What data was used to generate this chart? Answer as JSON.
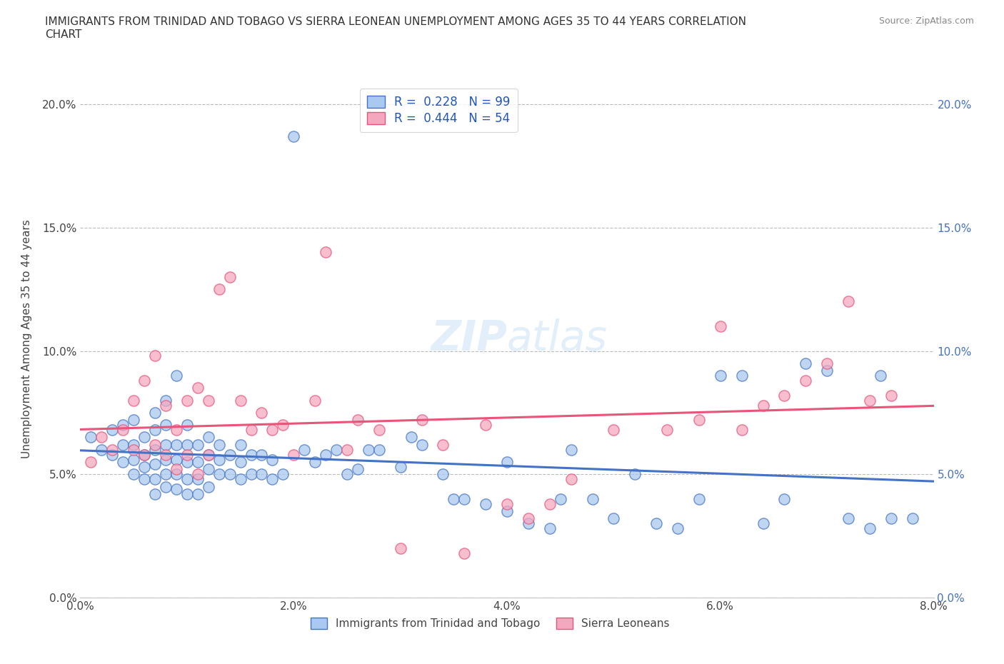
{
  "title": "IMMIGRANTS FROM TRINIDAD AND TOBAGO VS SIERRA LEONEAN UNEMPLOYMENT AMONG AGES 35 TO 44 YEARS CORRELATION\nCHART",
  "source_text": "Source: ZipAtlas.com",
  "ylabel": "Unemployment Among Ages 35 to 44 years",
  "xlim": [
    0.0,
    0.08
  ],
  "ylim": [
    0.0,
    0.21
  ],
  "legend_series": [
    {
      "label": "Immigrants from Trinidad and Tobago",
      "color": "#aac9f0",
      "R": 0.228,
      "N": 99
    },
    {
      "label": "Sierra Leoneans",
      "color": "#f4a8c0",
      "R": 0.444,
      "N": 54
    }
  ],
  "watermark": "ZIPatlas",
  "blue_scatter_x": [
    0.001,
    0.002,
    0.003,
    0.003,
    0.004,
    0.004,
    0.004,
    0.005,
    0.005,
    0.005,
    0.005,
    0.006,
    0.006,
    0.006,
    0.006,
    0.007,
    0.007,
    0.007,
    0.007,
    0.007,
    0.007,
    0.008,
    0.008,
    0.008,
    0.008,
    0.008,
    0.008,
    0.009,
    0.009,
    0.009,
    0.009,
    0.009,
    0.01,
    0.01,
    0.01,
    0.01,
    0.01,
    0.011,
    0.011,
    0.011,
    0.011,
    0.012,
    0.012,
    0.012,
    0.012,
    0.013,
    0.013,
    0.013,
    0.014,
    0.014,
    0.015,
    0.015,
    0.015,
    0.016,
    0.016,
    0.017,
    0.017,
    0.018,
    0.018,
    0.019,
    0.02,
    0.021,
    0.022,
    0.023,
    0.024,
    0.025,
    0.026,
    0.027,
    0.028,
    0.03,
    0.031,
    0.032,
    0.034,
    0.035,
    0.036,
    0.038,
    0.04,
    0.04,
    0.042,
    0.044,
    0.045,
    0.046,
    0.048,
    0.05,
    0.052,
    0.054,
    0.056,
    0.058,
    0.06,
    0.062,
    0.064,
    0.066,
    0.068,
    0.07,
    0.072,
    0.074,
    0.075,
    0.076,
    0.078
  ],
  "blue_scatter_y": [
    0.065,
    0.06,
    0.068,
    0.058,
    0.055,
    0.062,
    0.07,
    0.05,
    0.056,
    0.062,
    0.072,
    0.048,
    0.053,
    0.058,
    0.065,
    0.042,
    0.048,
    0.054,
    0.06,
    0.068,
    0.075,
    0.045,
    0.05,
    0.056,
    0.062,
    0.07,
    0.08,
    0.044,
    0.05,
    0.056,
    0.062,
    0.09,
    0.042,
    0.048,
    0.055,
    0.062,
    0.07,
    0.042,
    0.048,
    0.055,
    0.062,
    0.045,
    0.052,
    0.058,
    0.065,
    0.05,
    0.056,
    0.062,
    0.05,
    0.058,
    0.048,
    0.055,
    0.062,
    0.05,
    0.058,
    0.05,
    0.058,
    0.048,
    0.056,
    0.05,
    0.187,
    0.06,
    0.055,
    0.058,
    0.06,
    0.05,
    0.052,
    0.06,
    0.06,
    0.053,
    0.065,
    0.062,
    0.05,
    0.04,
    0.04,
    0.038,
    0.035,
    0.055,
    0.03,
    0.028,
    0.04,
    0.06,
    0.04,
    0.032,
    0.05,
    0.03,
    0.028,
    0.04,
    0.09,
    0.09,
    0.03,
    0.04,
    0.095,
    0.092,
    0.032,
    0.028,
    0.09,
    0.032,
    0.032
  ],
  "pink_scatter_x": [
    0.001,
    0.002,
    0.003,
    0.004,
    0.005,
    0.005,
    0.006,
    0.006,
    0.007,
    0.007,
    0.008,
    0.008,
    0.009,
    0.009,
    0.01,
    0.01,
    0.011,
    0.011,
    0.012,
    0.012,
    0.013,
    0.014,
    0.015,
    0.016,
    0.017,
    0.018,
    0.019,
    0.02,
    0.022,
    0.023,
    0.025,
    0.026,
    0.028,
    0.03,
    0.032,
    0.034,
    0.036,
    0.038,
    0.04,
    0.042,
    0.044,
    0.046,
    0.05,
    0.055,
    0.058,
    0.06,
    0.062,
    0.064,
    0.066,
    0.068,
    0.07,
    0.072,
    0.074,
    0.076
  ],
  "pink_scatter_y": [
    0.055,
    0.065,
    0.06,
    0.068,
    0.06,
    0.08,
    0.058,
    0.088,
    0.062,
    0.098,
    0.058,
    0.078,
    0.052,
    0.068,
    0.058,
    0.08,
    0.05,
    0.085,
    0.058,
    0.08,
    0.125,
    0.13,
    0.08,
    0.068,
    0.075,
    0.068,
    0.07,
    0.058,
    0.08,
    0.14,
    0.06,
    0.072,
    0.068,
    0.02,
    0.072,
    0.062,
    0.018,
    0.07,
    0.038,
    0.032,
    0.038,
    0.048,
    0.068,
    0.068,
    0.072,
    0.11,
    0.068,
    0.078,
    0.082,
    0.088,
    0.095,
    0.12,
    0.08,
    0.082
  ],
  "blue_line_color": "#4472c4",
  "pink_line_color": "#e8547a",
  "scatter_blue_color": "#aac9f0",
  "scatter_pink_color": "#f4a8c0",
  "background_color": "#ffffff",
  "grid_color": "#bbbbbb"
}
